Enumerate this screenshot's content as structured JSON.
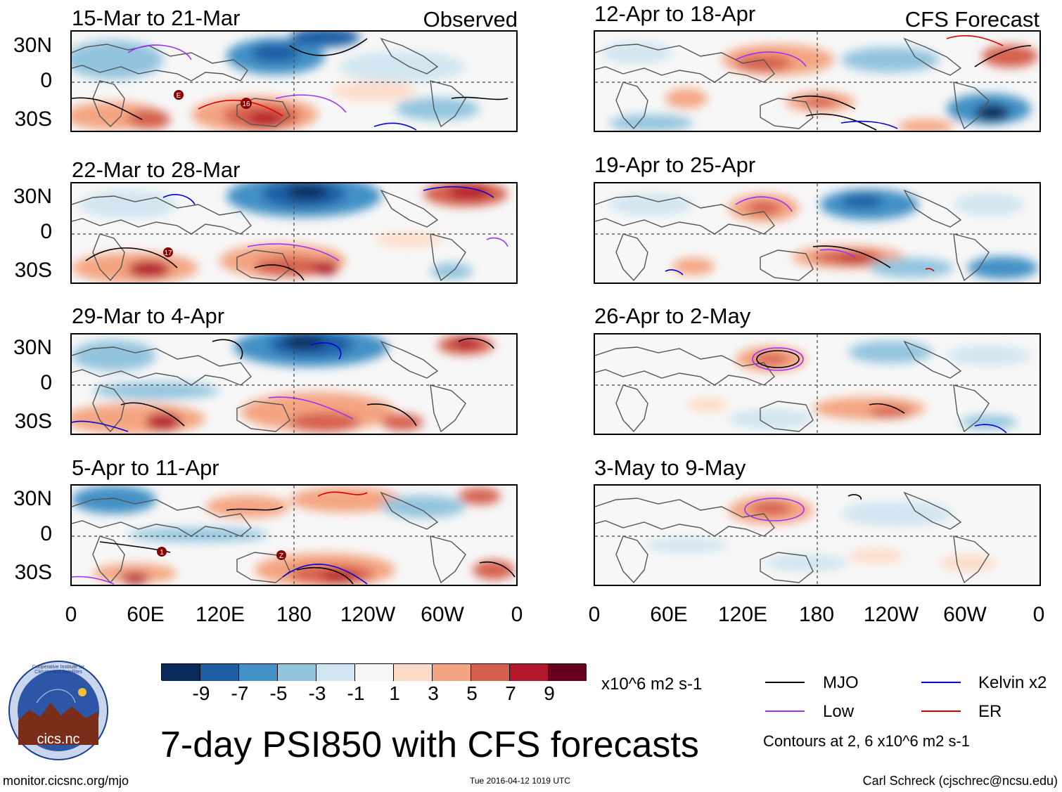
{
  "header": {
    "observed_label": "Observed",
    "forecast_label": "CFS Forecast"
  },
  "panels": {
    "observed": [
      {
        "title": "15-Mar to 21-Mar"
      },
      {
        "title": "22-Mar to 28-Mar"
      },
      {
        "title": "29-Mar to 4-Apr"
      },
      {
        "title": "5-Apr to 11-Apr"
      }
    ],
    "forecast": [
      {
        "title": "12-Apr to 18-Apr"
      },
      {
        "title": "19-Apr to 25-Apr"
      },
      {
        "title": "26-Apr to 2-May"
      },
      {
        "title": "3-May to 9-May"
      }
    ]
  },
  "axes": {
    "y_ticks": [
      "30N",
      "0",
      "30S"
    ],
    "x_ticks": [
      "0",
      "60E",
      "120E",
      "180",
      "120W",
      "60W",
      "0"
    ]
  },
  "storm_markers": {
    "panel1": [
      "E",
      "16"
    ],
    "panel2": [
      "17"
    ],
    "panel4": [
      "1",
      "Z"
    ]
  },
  "colorbar": {
    "colors": [
      "#0b2a5c",
      "#1d5fa5",
      "#4291c6",
      "#92c4de",
      "#d1e5f0",
      "#f7f7f7",
      "#fddbc7",
      "#f4a582",
      "#d6604d",
      "#b2182b",
      "#67001f"
    ],
    "tick_labels": [
      "-9",
      "-7",
      "-5",
      "-3",
      "-1",
      "1",
      "3",
      "5",
      "7",
      "9"
    ],
    "units": "x10^6 m2 s-1"
  },
  "legend": {
    "items": [
      {
        "label": "MJO",
        "color": "#000000"
      },
      {
        "label": "Kelvin x2",
        "color": "#0000dd"
      },
      {
        "label": "Low",
        "color": "#9b30ff"
      },
      {
        "label": "ER",
        "color": "#dd0000"
      }
    ],
    "contours_note": "Contours at 2, 6 x10^6 m2 s-1"
  },
  "footer": {
    "main_title": "7-day PSI850 with CFS forecasts",
    "website": "monitor.cicsnc.org/mjo",
    "timestamp": "Tue 2016-04-12 1019 UTC",
    "author": "Carl Schreck (cjschrec@ncsu.edu)",
    "logo_text": "cics.nc",
    "logo_ring_text": "Cooperative Institute for Climate and Satellites"
  }
}
